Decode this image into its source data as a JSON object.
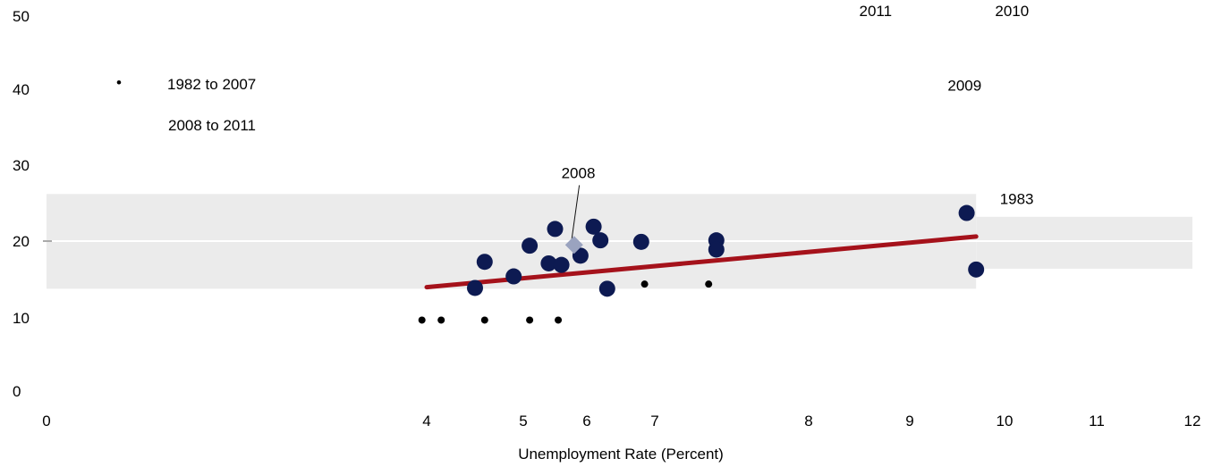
{
  "chart_data": {
    "type": "scatter",
    "xlabel": "Unemployment Rate (Percent)",
    "ylabel": "",
    "xticks": [
      "0",
      "4",
      "5",
      "6",
      "7",
      "8",
      "9",
      "10",
      "11",
      "12"
    ],
    "yticks": [
      "0",
      "10",
      "20",
      "30",
      "40",
      "50"
    ],
    "ylim": [
      0,
      50
    ],
    "grid": false,
    "legend": {
      "placement": "top-left",
      "entries": [
        {
          "marker": "•",
          "label": "1982 to 2007"
        },
        {
          "marker": "",
          "label": "2008 to 2011"
        }
      ]
    },
    "bands": [
      {
        "x0": 0,
        "x1": 9.7,
        "y0": 13.8,
        "y1": 26.2
      },
      {
        "x0": 9.7,
        "x1": 12,
        "y0": 16.4,
        "y1": 23.2
      }
    ],
    "series": [
      {
        "name": "1982 to 2007",
        "color": "#0d1a52",
        "points": [
          {
            "x": 4.5,
            "y": 13.9
          },
          {
            "x": 4.6,
            "y": 17.3
          },
          {
            "x": 4.9,
            "y": 15.4
          },
          {
            "x": 5.1,
            "y": 19.4
          },
          {
            "x": 5.4,
            "y": 17.1
          },
          {
            "x": 5.5,
            "y": 21.6
          },
          {
            "x": 5.6,
            "y": 16.9
          },
          {
            "x": 5.9,
            "y": 18.1
          },
          {
            "x": 6.1,
            "y": 21.9
          },
          {
            "x": 6.2,
            "y": 20.1
          },
          {
            "x": 6.3,
            "y": 13.8
          },
          {
            "x": 6.8,
            "y": 19.9
          },
          {
            "x": 7.4,
            "y": 20.1
          },
          {
            "x": 7.4,
            "y": 18.9
          },
          {
            "x": 9.6,
            "y": 23.7
          },
          {
            "x": 9.7,
            "y": 16.3
          }
        ]
      },
      {
        "name": "2008 to 2011",
        "color": "#9aa3bf",
        "points": [
          {
            "x": 5.8,
            "y": 19.5
          }
        ]
      }
    ],
    "small_dots": [
      {
        "x": 3.95,
        "y": 9.7
      },
      {
        "x": 4.15,
        "y": 9.7
      },
      {
        "x": 4.6,
        "y": 9.7
      },
      {
        "x": 5.1,
        "y": 9.7
      },
      {
        "x": 5.55,
        "y": 9.7
      },
      {
        "x": 6.85,
        "y": 14.4
      },
      {
        "x": 7.35,
        "y": 14.4
      }
    ],
    "trend_line": {
      "color": "#a5121b",
      "x0": 4.0,
      "y0": 14.0,
      "x1": 9.7,
      "y1": 20.6
    },
    "annotations": [
      {
        "text": "2008",
        "x": 5.6,
        "y": 28.3,
        "leader_to": {
          "x": 5.75,
          "y": 19.5
        }
      },
      {
        "text": "2011",
        "x": 8.5,
        "y": 51.7
      },
      {
        "text": "2010",
        "x": 9.9,
        "y": 51.2
      },
      {
        "text": "2009",
        "x": 9.4,
        "y": 39.8
      },
      {
        "text": "1983",
        "x": 9.95,
        "y": 24.9
      }
    ]
  }
}
